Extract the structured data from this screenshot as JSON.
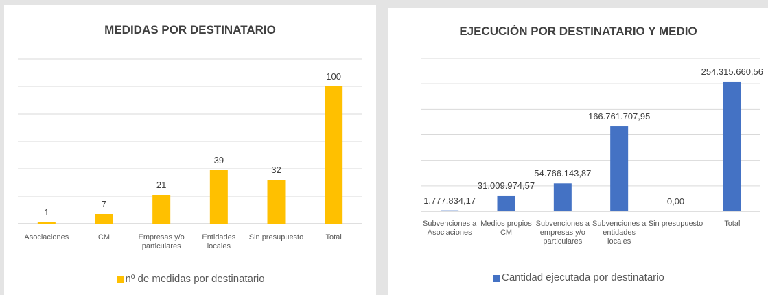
{
  "chart_data": [
    {
      "type": "bar",
      "title": "MEDIDAS POR DESTINATARIO",
      "categories": [
        "Asociaciones",
        "CM",
        "Empresas y/o particulares",
        "Entidades locales",
        "Sin presupuesto",
        "Total"
      ],
      "series": [
        {
          "name": "nº de medidas por destinatario",
          "color": "#ffc000",
          "values": [
            1,
            7,
            21,
            39,
            32,
            100
          ]
        }
      ],
      "ylim": [
        0,
        120
      ],
      "yticks": [
        0,
        20,
        40,
        60,
        80,
        100,
        120
      ],
      "grid": true,
      "legend": "bottom"
    },
    {
      "type": "bar",
      "title": "EJECUCIÓN POR DESTINATARIO Y MEDIO",
      "categories": [
        "Subvenciones a Asociaciones",
        "Medios propios CM",
        "Subvenciones a empresas y/o particulares",
        "Subvenciones a entidades locales",
        "Sin presupuesto",
        "Total"
      ],
      "series": [
        {
          "name": "Cantidad ejecutada por destinatario",
          "color": "#4472c4",
          "values": [
            1777834.17,
            31009974.57,
            54766143.87,
            166761707.95,
            0,
            254315660.56
          ],
          "value_labels": [
            "1.777.834,17",
            "31.009.974,57",
            "54.766.143,87",
            "166.761.707,95",
            "0,00",
            "254.315.660,56"
          ]
        }
      ],
      "ylim": [
        0,
        300000000
      ],
      "yticks": [
        0,
        50000000,
        100000000,
        150000000,
        200000000,
        250000000,
        300000000
      ],
      "grid": true,
      "legend": "bottom"
    }
  ]
}
